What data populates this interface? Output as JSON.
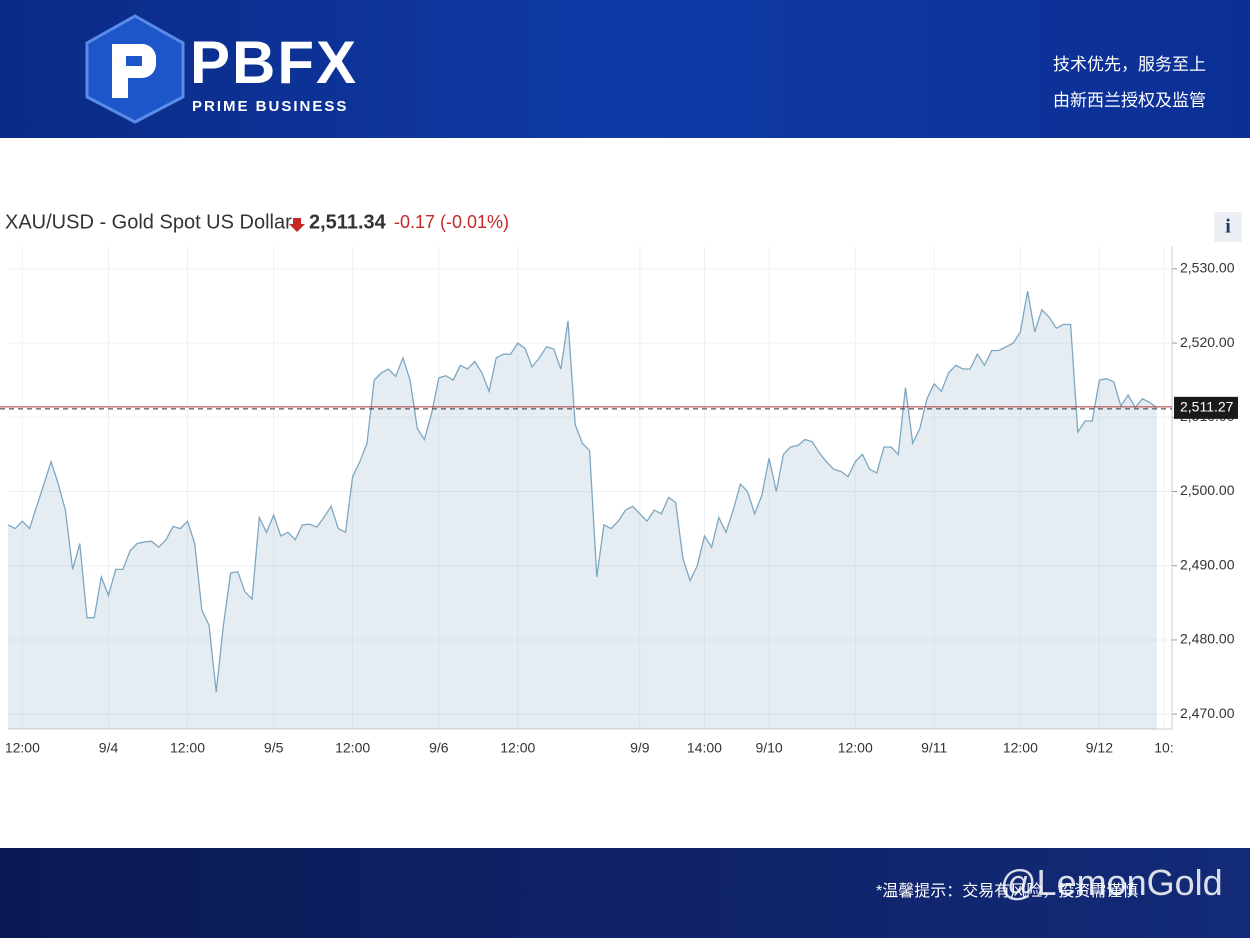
{
  "header": {
    "brand": "PBFX",
    "tagline": "PRIME BUSINESS",
    "slogan1": "技术优先，服务至上",
    "slogan2": "由新西兰授权及监管"
  },
  "chart_data": {
    "type": "area",
    "title": "XAU/USD - Gold Spot US Dollar",
    "price": "2,511.34",
    "change": "-0.17",
    "change_pct": "(-0.01%)",
    "info": "i",
    "categories": [
      null,
      null,
      "12:00",
      null,
      null,
      null,
      null,
      null,
      null,
      null,
      null,
      null,
      null,
      null,
      "9/4",
      null,
      null,
      null,
      null,
      null,
      null,
      null,
      null,
      null,
      null,
      "12:00",
      null,
      null,
      null,
      null,
      null,
      null,
      null,
      null,
      null,
      null,
      null,
      "9/5",
      null,
      null,
      null,
      null,
      null,
      null,
      null,
      null,
      null,
      null,
      "12:00",
      null,
      null,
      null,
      null,
      null,
      null,
      null,
      null,
      null,
      null,
      null,
      "9/6",
      null,
      null,
      null,
      null,
      null,
      null,
      null,
      null,
      null,
      null,
      "12:00",
      null,
      null,
      null,
      null,
      null,
      null,
      null,
      null,
      null,
      null,
      null,
      null,
      null,
      null,
      null,
      null,
      "9/9",
      null,
      null,
      null,
      null,
      null,
      null,
      null,
      null,
      "14:00",
      null,
      null,
      null,
      null,
      null,
      null,
      null,
      null,
      "9/10",
      null,
      null,
      null,
      null,
      null,
      null,
      null,
      null,
      null,
      null,
      null,
      "12:00",
      null,
      null,
      null,
      null,
      null,
      null,
      null,
      null,
      null,
      null,
      "9/11",
      null,
      null,
      null,
      null,
      null,
      null,
      null,
      null,
      null,
      null,
      null,
      "12:00",
      null,
      null,
      null,
      null,
      null,
      null,
      null,
      null,
      null,
      null,
      "9/12",
      null,
      null,
      null,
      null,
      null,
      null,
      null,
      null,
      "10:"
    ],
    "series": [
      {
        "color": "#7ea7c1",
        "values": [
          2495.5,
          2495,
          2496,
          2495,
          2498,
          2501,
          2504,
          2501,
          2497.5,
          2489.5,
          2493,
          2483,
          2483,
          2488.5,
          2486,
          2489.5,
          2489.5,
          2492,
          2493,
          2493.2,
          2493.3,
          2492.5,
          2493.5,
          2495.3,
          2495,
          2496,
          2493,
          2484,
          2482,
          2473,
          2482,
          2489,
          2489.2,
          2486.5,
          2485.5,
          2496.5,
          2494.5,
          2496.8,
          2494,
          2494.5,
          2493.5,
          2495.5,
          2495.6,
          2495.2,
          2496.5,
          2498,
          2495,
          2494.5,
          2502,
          2504,
          2506.5,
          2515,
          2516,
          2516.5,
          2515.5,
          2518,
          2515,
          2508.5,
          2507,
          2510.5,
          2515.3,
          2515.6,
          2515,
          2517,
          2516.5,
          2517.5,
          2516,
          2513.5,
          2518,
          2518.5,
          2518.5,
          2520,
          2519.3,
          2516.8,
          2518,
          2519.5,
          2519.2,
          2516.5,
          2523,
          2509,
          2506.5,
          2505.5,
          2488.5,
          2495.5,
          2495,
          2496,
          2497.5,
          2498,
          2497,
          2496,
          2497.5,
          2497,
          2499.2,
          2498.5,
          2491,
          2488,
          2490,
          2494,
          2492.5,
          2496.5,
          2494.5,
          2497.5,
          2501,
          2500,
          2497,
          2499.5,
          2504.5,
          2500,
          2505,
          2506,
          2506.2,
          2507,
          2506.7,
          2505.2,
          2504,
          2503,
          2502.7,
          2502,
          2504,
          2505,
          2503,
          2502.5,
          2506,
          2506,
          2505,
          2514,
          2506.5,
          2508.5,
          2512.5,
          2514.5,
          2513.5,
          2516,
          2517,
          2516.5,
          2516.5,
          2518.5,
          2517,
          2519,
          2519,
          2519.5,
          2520,
          2521.5,
          2527,
          2521.5,
          2524.5,
          2523.5,
          2522,
          2522.5,
          2522.5,
          2508,
          2509.5,
          2509.5,
          2515,
          2515.2,
          2514.8,
          2511.5,
          2513,
          2511.3,
          2512.5,
          2512,
          2511.3,
          null
        ]
      }
    ],
    "ylim": [
      2468,
      2532
    ],
    "yticks": [
      {
        "value": 2470,
        "label": "2,470.00"
      },
      {
        "value": 2480,
        "label": "2,480.00"
      },
      {
        "value": 2490,
        "label": "2,490.00"
      },
      {
        "value": 2500,
        "label": "2,500.00"
      },
      {
        "value": 2510,
        "label": "2,510.00"
      },
      {
        "value": 2520,
        "label": "2,520.00"
      },
      {
        "value": 2530,
        "label": "2,530.00"
      }
    ],
    "grid": true,
    "reference_line": {
      "value": 2511.27,
      "label": "2,511.27",
      "color": "#b03a3a"
    }
  },
  "footer": {
    "note": "*温馨提示：交易有风险，投资需谨慎",
    "watermark": "@LemonGold"
  }
}
